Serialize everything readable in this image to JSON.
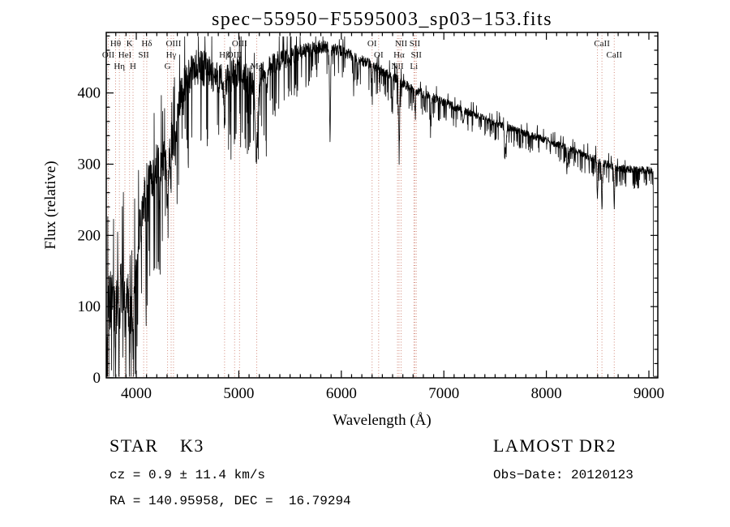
{
  "chart_data": {
    "type": "line",
    "title": "spec−55950−F5595003_sp03−153.fits",
    "xlabel": "Wavelength (Å)",
    "ylabel": "Flux (relative)",
    "xlim": [
      3707,
      9087
    ],
    "ylim": [
      0,
      485
    ],
    "xticks": [
      4000,
      5000,
      6000,
      7000,
      8000,
      9000
    ],
    "yticks": [
      0,
      100,
      200,
      300,
      400
    ],
    "x_minor_step": 100,
    "x_major_step": 1000,
    "y_minor_step": 20,
    "y_major_step": 100,
    "grid": false,
    "line_color": "#000000",
    "marker_line_color": "#cc7766",
    "marker_label_color": "#111111",
    "series_name": "flux",
    "sample_step": 2,
    "noise_seed": 42,
    "flux_drop_wavelength": 9042,
    "continuum": [
      [
        3707,
        55
      ],
      [
        3730,
        95
      ],
      [
        3760,
        110
      ],
      [
        3800,
        100
      ],
      [
        3840,
        125
      ],
      [
        3870,
        130
      ],
      [
        3910,
        120
      ],
      [
        3940,
        105
      ],
      [
        3975,
        120
      ],
      [
        4000,
        150
      ],
      [
        4040,
        215
      ],
      [
        4080,
        245
      ],
      [
        4130,
        270
      ],
      [
        4180,
        290
      ],
      [
        4230,
        300
      ],
      [
        4280,
        300
      ],
      [
        4330,
        315
      ],
      [
        4380,
        345
      ],
      [
        4440,
        400
      ],
      [
        4500,
        420
      ],
      [
        4560,
        430
      ],
      [
        4620,
        435
      ],
      [
        4700,
        428
      ],
      [
        4780,
        420
      ],
      [
        4860,
        412
      ],
      [
        4940,
        425
      ],
      [
        5000,
        430
      ],
      [
        5100,
        415
      ],
      [
        5200,
        420
      ],
      [
        5300,
        435
      ],
      [
        5400,
        443
      ],
      [
        5500,
        450
      ],
      [
        5600,
        456
      ],
      [
        5700,
        460
      ],
      [
        5800,
        464
      ],
      [
        5900,
        462
      ],
      [
        6000,
        458
      ],
      [
        6100,
        452
      ],
      [
        6200,
        445
      ],
      [
        6300,
        438
      ],
      [
        6400,
        430
      ],
      [
        6500,
        422
      ],
      [
        6600,
        412
      ],
      [
        6700,
        405
      ],
      [
        6800,
        398
      ],
      [
        6950,
        390
      ],
      [
        7100,
        380
      ],
      [
        7250,
        372
      ],
      [
        7400,
        363
      ],
      [
        7550,
        355
      ],
      [
        7700,
        347
      ],
      [
        7850,
        340
      ],
      [
        8000,
        333
      ],
      [
        8150,
        325
      ],
      [
        8300,
        317
      ],
      [
        8450,
        308
      ],
      [
        8600,
        299
      ],
      [
        8750,
        293
      ],
      [
        8900,
        291
      ],
      [
        9000,
        291
      ],
      [
        9042,
        289
      ]
    ],
    "absorption_lines": [
      [
        3798,
        40,
        5
      ],
      [
        3835,
        45,
        5
      ],
      [
        3889,
        40,
        5
      ],
      [
        3934,
        75,
        7
      ],
      [
        3969,
        70,
        7
      ],
      [
        4102,
        55,
        6
      ],
      [
        4227,
        45,
        4
      ],
      [
        4305,
        50,
        9
      ],
      [
        4340,
        45,
        5
      ],
      [
        4383,
        40,
        4
      ],
      [
        4455,
        30,
        4
      ],
      [
        4861,
        55,
        6
      ],
      [
        4920,
        30,
        4
      ],
      [
        5172,
        105,
        14
      ],
      [
        5270,
        35,
        6
      ],
      [
        5890,
        125,
        5
      ],
      [
        6122,
        35,
        4
      ],
      [
        6162,
        30,
        4
      ],
      [
        6300,
        25,
        4
      ],
      [
        6497,
        40,
        4
      ],
      [
        6563,
        95,
        5
      ],
      [
        6717,
        25,
        4
      ],
      [
        6870,
        30,
        6
      ],
      [
        7190,
        20,
        7
      ],
      [
        7600,
        35,
        9
      ],
      [
        8205,
        25,
        5
      ],
      [
        8498,
        55,
        4
      ],
      [
        8542,
        70,
        4
      ],
      [
        8662,
        60,
        4
      ]
    ],
    "noise_envelope": [
      [
        3707,
        52
      ],
      [
        3900,
        48
      ],
      [
        4000,
        42
      ],
      [
        4150,
        38
      ],
      [
        4350,
        34
      ],
      [
        4600,
        30
      ],
      [
        4900,
        26
      ],
      [
        5150,
        24
      ],
      [
        5400,
        18
      ],
      [
        5700,
        12
      ],
      [
        6000,
        9
      ],
      [
        6300,
        9
      ],
      [
        6600,
        8
      ],
      [
        7000,
        7
      ],
      [
        7400,
        6
      ],
      [
        7800,
        6
      ],
      [
        8200,
        6
      ],
      [
        8600,
        7
      ],
      [
        9087,
        6
      ]
    ],
    "line_markers": [
      {
        "wavelength": 3727,
        "label": "OII",
        "row": 2
      },
      {
        "wavelength": 3798,
        "label": "Hθ",
        "row": 1
      },
      {
        "wavelength": 3835,
        "label": "Hη",
        "row": 3
      },
      {
        "wavelength": 3889,
        "label": "HeI",
        "row": 2
      },
      {
        "wavelength": 3934,
        "label": "K",
        "row": 1
      },
      {
        "wavelength": 3968,
        "label": "H",
        "row": 3
      },
      {
        "wavelength": 4072,
        "label": "SII",
        "row": 2
      },
      {
        "wavelength": 4102,
        "label": "Hδ",
        "row": 1
      },
      {
        "wavelength": 4305,
        "label": "G",
        "row": 3
      },
      {
        "wavelength": 4340,
        "label": "Hγ",
        "row": 2
      },
      {
        "wavelength": 4363,
        "label": "OIII",
        "row": 1
      },
      {
        "wavelength": 4861,
        "label": "Hβ",
        "row": 2
      },
      {
        "wavelength": 4959,
        "label": "OIII",
        "row": 2
      },
      {
        "wavelength": 5007,
        "label": "OIII",
        "row": 1
      },
      {
        "wavelength": 5175,
        "label": "Mg",
        "row": 3
      },
      {
        "wavelength": 6300,
        "label": "OI",
        "row": 1
      },
      {
        "wavelength": 6364,
        "label": "OI",
        "row": 2
      },
      {
        "wavelength": 6548,
        "label": "NII",
        "row": 3
      },
      {
        "wavelength": 6563,
        "label": "Hα",
        "row": 2
      },
      {
        "wavelength": 6583,
        "label": "NII",
        "row": 1
      },
      {
        "wavelength": 6708,
        "label": "Li",
        "row": 3
      },
      {
        "wavelength": 6717,
        "label": "SII",
        "row": 1
      },
      {
        "wavelength": 6731,
        "label": "SII",
        "row": 2
      },
      {
        "wavelength": 8498,
        "label": "",
        "row": 3
      },
      {
        "wavelength": 8542,
        "label": "CaII",
        "row": 1
      },
      {
        "wavelength": 8662,
        "label": "CaII",
        "row": 2
      }
    ]
  },
  "annotations": {
    "class_label": "STAR",
    "subclass": "K3",
    "survey": "LAMOST DR2",
    "cz": "cz = 0.9 ± 11.4 km/s",
    "obs_date": "Obs−Date: 20120123",
    "coords": "RA = 140.95958, DEC =  16.79294"
  }
}
